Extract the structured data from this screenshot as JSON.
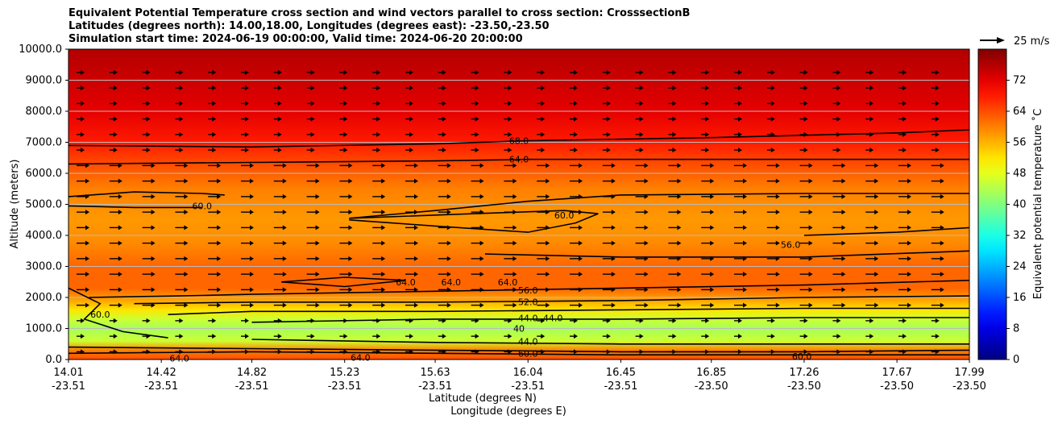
{
  "title_lines": [
    "Equivalent Potential Temperature cross section and wind vectors parallel to cross section: CrosssectionB",
    "Latitudes (degrees north): 14.00,18.00, Longitudes (degrees east): -23.50,-23.50",
    "Simulation start time: 2024-06-19 00:00:00, Valid time: 2024-06-20 20:00:00"
  ],
  "chart_data": {
    "type": "heatmap",
    "ylabel": "Altitude (meters)",
    "xlabel_lat": "Latitude (degrees N)",
    "xlabel_lon": "Longitude (degrees E)",
    "ylim": [
      0,
      10000
    ],
    "y_ticks": [
      "0.0",
      "1000.0",
      "2000.0",
      "3000.0",
      "4000.0",
      "5000.0",
      "6000.0",
      "7000.0",
      "8000.0",
      "9000.0",
      "10000.0"
    ],
    "x_ticks": [
      {
        "lat": "14.01",
        "lon": "-23.51"
      },
      {
        "lat": "14.42",
        "lon": "-23.51"
      },
      {
        "lat": "14.82",
        "lon": "-23.51"
      },
      {
        "lat": "15.23",
        "lon": "-23.51"
      },
      {
        "lat": "15.63",
        "lon": "-23.51"
      },
      {
        "lat": "16.04",
        "lon": "-23.51"
      },
      {
        "lat": "16.45",
        "lon": "-23.51"
      },
      {
        "lat": "16.85",
        "lon": "-23.50"
      },
      {
        "lat": "17.26",
        "lon": "-23.50"
      },
      {
        "lat": "17.67",
        "lon": "-23.50"
      },
      {
        "lat": "17.99",
        "lon": "-23.50"
      }
    ],
    "colorbar": {
      "label": "Equivalent potential temperature ˚C",
      "ticks": [
        "0",
        "8",
        "16",
        "24",
        "32",
        "40",
        "48",
        "56",
        "64",
        "72"
      ],
      "range": [
        0,
        80
      ]
    },
    "quiver_key_label": "25 m/s",
    "theta_e_profile": [
      {
        "altitude": 0,
        "value": 64
      },
      {
        "altitude": 300,
        "value": 60
      },
      {
        "altitude": 600,
        "value": 46
      },
      {
        "altitude": 1000,
        "value": 43
      },
      {
        "altitude": 1300,
        "value": 46
      },
      {
        "altitude": 1600,
        "value": 52
      },
      {
        "altitude": 1900,
        "value": 57
      },
      {
        "altitude": 2300,
        "value": 62
      },
      {
        "altitude": 3000,
        "value": 62
      },
      {
        "altitude": 3800,
        "value": 59
      },
      {
        "altitude": 4500,
        "value": 58
      },
      {
        "altitude": 5500,
        "value": 60
      },
      {
        "altitude": 6300,
        "value": 64
      },
      {
        "altitude": 7000,
        "value": 68
      },
      {
        "altitude": 8000,
        "value": 72
      },
      {
        "altitude": 9000,
        "value": 74
      },
      {
        "altitude": 10000,
        "value": 76
      }
    ],
    "contour_labels": [
      "68.0",
      "64.0",
      "60.0",
      "60.0",
      "56.0",
      "64.0",
      "64.0",
      "64.0",
      "56.0",
      "52.0",
      "44.0",
      "44.0",
      "44.0",
      "60.0",
      "64.0",
      "64.0",
      "60.0",
      "60.0",
      "40"
    ],
    "contours": [
      {
        "value": 68,
        "points": [
          [
            14.01,
            6900
          ],
          [
            14.82,
            6850
          ],
          [
            15.63,
            6950
          ],
          [
            16.04,
            7050
          ],
          [
            16.85,
            7150
          ],
          [
            17.67,
            7300
          ],
          [
            17.99,
            7400
          ]
        ]
      },
      {
        "value": 64,
        "points": [
          [
            14.01,
            6300
          ],
          [
            14.82,
            6350
          ],
          [
            15.63,
            6400
          ],
          [
            16.04,
            6450
          ],
          [
            16.85,
            6450
          ],
          [
            17.99,
            6450
          ]
        ]
      },
      {
        "value": 60,
        "points": [
          [
            15.25,
            4550
          ],
          [
            15.63,
            4800
          ],
          [
            16.04,
            5100
          ],
          [
            16.45,
            5300
          ],
          [
            17.26,
            5350
          ],
          [
            17.99,
            5350
          ]
        ]
      },
      {
        "value": 60,
        "points": [
          [
            15.25,
            4500
          ],
          [
            15.63,
            4300
          ],
          [
            16.04,
            4100
          ],
          [
            16.25,
            4400
          ],
          [
            16.35,
            4700
          ],
          [
            16.2,
            4800
          ],
          [
            15.8,
            4700
          ],
          [
            15.25,
            4550
          ]
        ]
      },
      {
        "value": 60,
        "points": [
          [
            14.01,
            5250
          ],
          [
            14.3,
            5400
          ],
          [
            14.6,
            5350
          ],
          [
            14.7,
            5300
          ]
        ]
      },
      {
        "value": 60,
        "points": [
          [
            14.01,
            4950
          ],
          [
            14.3,
            4900
          ],
          [
            14.6,
            4900
          ]
        ]
      },
      {
        "value": 56,
        "points": [
          [
            15.85,
            3400
          ],
          [
            16.45,
            3300
          ],
          [
            17.26,
            3300
          ],
          [
            17.99,
            3500
          ]
        ]
      },
      {
        "value": 56,
        "points": [
          [
            17.26,
            4000
          ],
          [
            17.67,
            4100
          ],
          [
            17.99,
            4250
          ]
        ]
      },
      {
        "value": 64,
        "points": [
          [
            14.95,
            2500
          ],
          [
            15.23,
            2650
          ],
          [
            15.5,
            2550
          ],
          [
            15.23,
            2350
          ],
          [
            14.95,
            2500
          ]
        ]
      },
      {
        "value": 56,
        "points": [
          [
            14.1,
            2000
          ],
          [
            14.5,
            2050
          ],
          [
            14.82,
            2100
          ],
          [
            15.63,
            2200
          ],
          [
            16.45,
            2300
          ],
          [
            17.26,
            2400
          ],
          [
            17.99,
            2550
          ]
        ]
      },
      {
        "value": 52,
        "points": [
          [
            14.3,
            1800
          ],
          [
            14.82,
            1850
          ],
          [
            15.63,
            1850
          ],
          [
            16.45,
            1900
          ],
          [
            17.26,
            2000
          ],
          [
            17.99,
            2050
          ]
        ]
      },
      {
        "value": 48,
        "points": [
          [
            14.45,
            1450
          ],
          [
            14.82,
            1550
          ],
          [
            15.63,
            1550
          ],
          [
            16.45,
            1600
          ],
          [
            17.26,
            1650
          ],
          [
            17.99,
            1650
          ]
        ]
      },
      {
        "value": 44,
        "points": [
          [
            14.82,
            1200
          ],
          [
            15.63,
            1300
          ],
          [
            16.45,
            1300
          ],
          [
            17.26,
            1350
          ],
          [
            17.99,
            1350
          ]
        ]
      },
      {
        "value": 44,
        "points": [
          [
            14.82,
            650
          ],
          [
            15.63,
            550
          ],
          [
            16.45,
            500
          ],
          [
            17.26,
            500
          ],
          [
            17.99,
            500
          ]
        ]
      },
      {
        "value": 60,
        "points": [
          [
            14.01,
            400
          ],
          [
            14.82,
            350
          ],
          [
            15.63,
            300
          ],
          [
            16.45,
            250
          ],
          [
            17.26,
            250
          ],
          [
            17.99,
            300
          ]
        ]
      },
      {
        "value": 64,
        "points": [
          [
            14.01,
            200
          ],
          [
            14.82,
            250
          ],
          [
            15.63,
            200
          ],
          [
            16.45,
            150
          ],
          [
            17.26,
            150
          ],
          [
            17.99,
            150
          ]
        ]
      },
      {
        "value": 60,
        "points": [
          [
            14.01,
            2300
          ],
          [
            14.15,
            1800
          ],
          [
            14.08,
            1300
          ],
          [
            14.25,
            900
          ],
          [
            14.45,
            700
          ]
        ]
      }
    ]
  }
}
